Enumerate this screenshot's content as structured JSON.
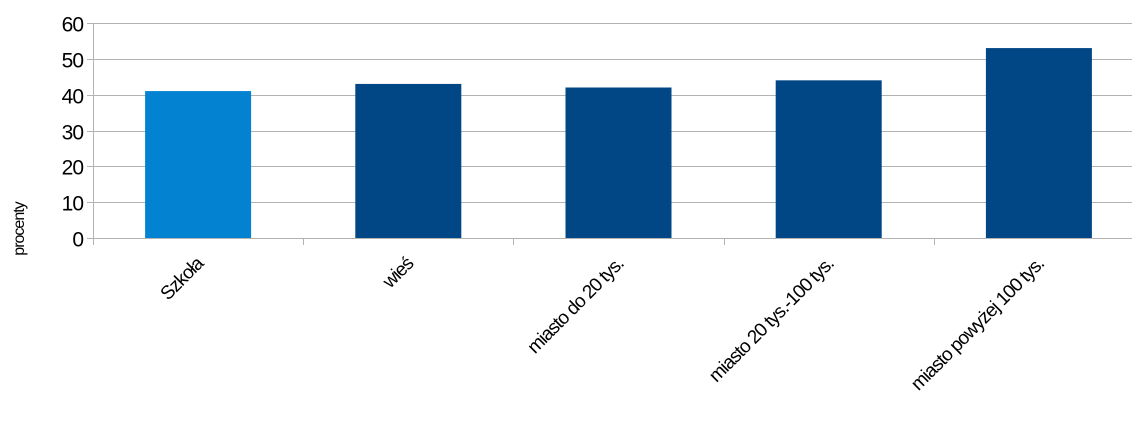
{
  "chart_data": {
    "type": "bar",
    "title": "",
    "xlabel": "",
    "ylabel": "procenty",
    "categories": [
      "Szkoła",
      "wieś",
      "miasto do 20 tys.",
      "miasto 20 tys.-100 tys.",
      "miasto powyżej 100 tys."
    ],
    "values": [
      41,
      43,
      42,
      44,
      53
    ],
    "ylim": [
      0,
      60
    ],
    "yticks": [
      0,
      10,
      20,
      30,
      40,
      50,
      60
    ],
    "grid": true,
    "legend": "none",
    "colors": {
      "highlight": "#0282d1",
      "bar": "#014786",
      "grid": "#b3b3b3",
      "axis": "#b3b3b3"
    },
    "highlight_index": 0
  }
}
